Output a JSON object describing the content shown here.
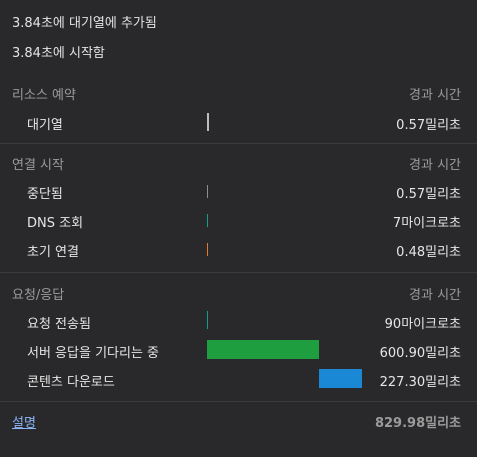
{
  "summary": {
    "queued_at": "3.84초에 대기열에 추가됨",
    "started_at": "3.84초에 시작함"
  },
  "column_header": "경과 시간",
  "sections": [
    {
      "label": "리소스 예약",
      "rows": [
        {
          "label": "대기열",
          "value": "0.57밀리초",
          "bar_color": "#9e9e9e",
          "bar_fraction": 0.0
        }
      ]
    },
    {
      "label": "연결 시작",
      "rows": [
        {
          "label": "중단됨",
          "value": "0.57밀리초",
          "bar_color": "#9e9e9e",
          "bar_fraction": 0.0
        },
        {
          "label": "DNS 조회",
          "value": "7마이크로초",
          "bar_color": "#1a9c8a",
          "bar_fraction": 0.0
        },
        {
          "label": "초기 연결",
          "value": "0.48밀리초",
          "bar_color": "#e07a2c",
          "bar_fraction": 0.0
        }
      ]
    },
    {
      "label": "요청/응답",
      "rows": [
        {
          "label": "요청 전송됨",
          "value": "90마이크로초",
          "bar_color": "#1a9c8a",
          "bar_fraction": 0.0
        },
        {
          "label": "서버 응답을 기다리는 중",
          "value": "600.90밀리초",
          "bar_color": "#1e9e3f",
          "bar_fraction": 0.724
        },
        {
          "label": "콘텐츠 다운로드",
          "value": "227.30밀리초",
          "bar_color": "#1a88d4",
          "bar_fraction": 0.274
        }
      ]
    }
  ],
  "footer": {
    "explain_link": "설명",
    "total": "829.98밀리초"
  }
}
